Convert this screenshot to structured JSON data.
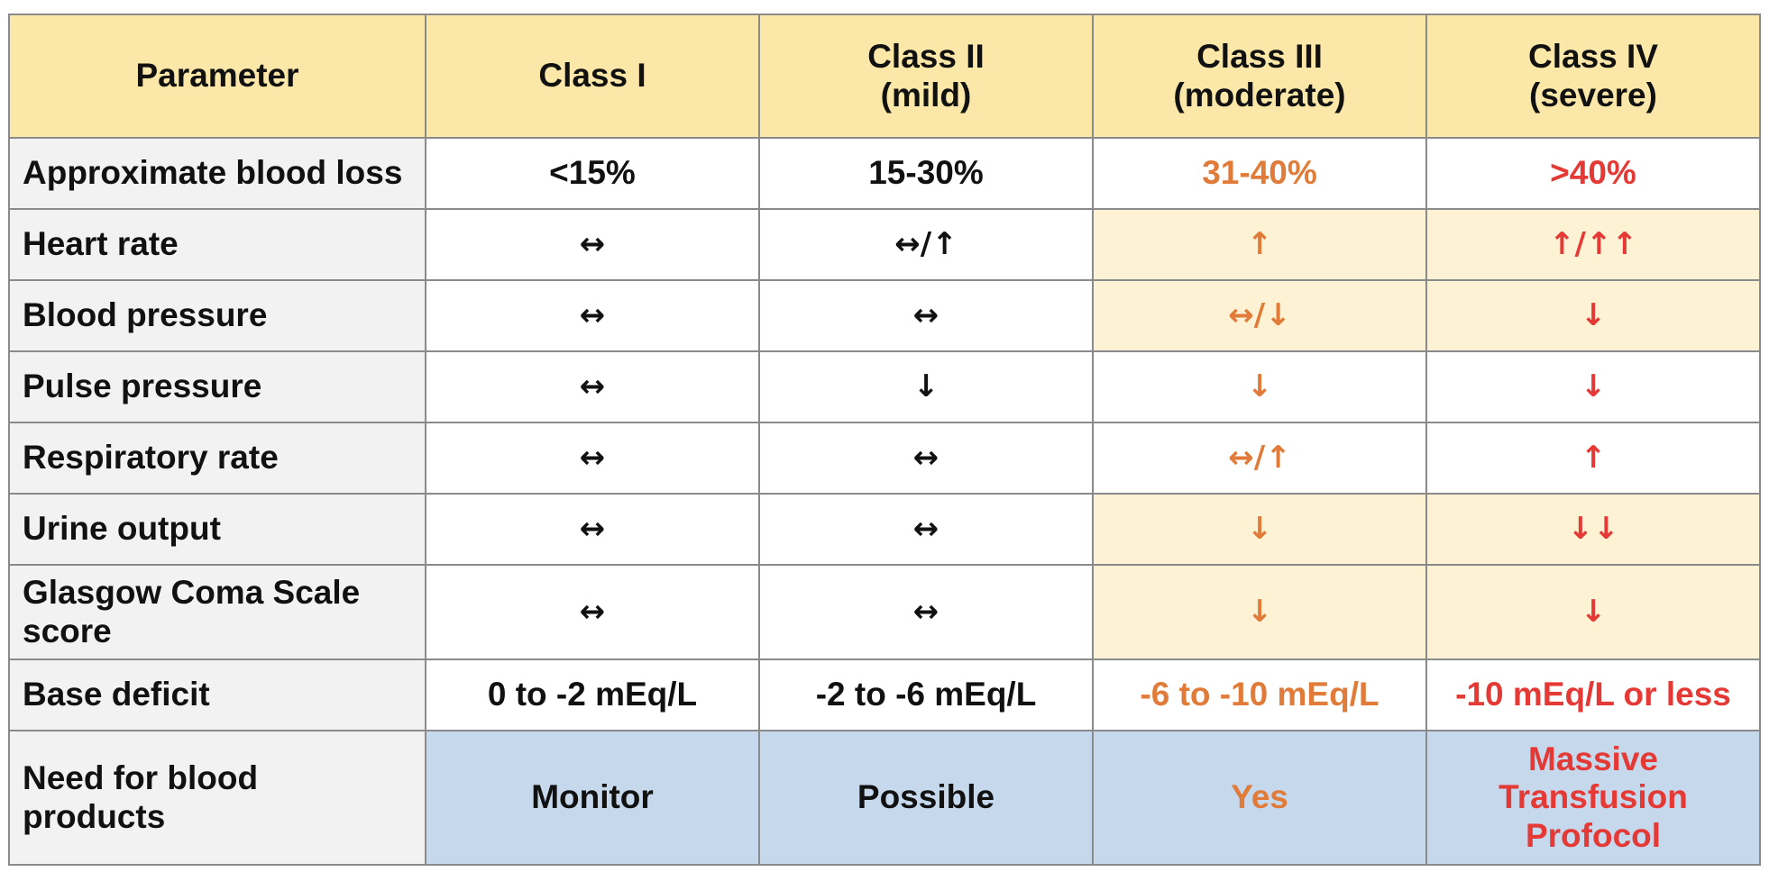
{
  "header": {
    "parameter": "Parameter",
    "class1": "Class I",
    "class2_line1": "Class II",
    "class2_line2": "(mild)",
    "class3_line1": "Class III",
    "class3_line2": "(moderate)",
    "class4_line1": "Class IV",
    "class4_line2": "(severe)"
  },
  "rows": [
    {
      "param": "Approximate blood loss",
      "c1": "<15%",
      "c2": "15-30%",
      "c3": "31-40%",
      "c4": ">40%"
    },
    {
      "param": "Heart rate",
      "c1": "↔",
      "c2": "↔/↑",
      "c3": "↑",
      "c4": "↑/↑↑"
    },
    {
      "param": "Blood pressure",
      "c1": "↔",
      "c2": "↔",
      "c3": "↔/↓",
      "c4": "↓"
    },
    {
      "param": "Pulse pressure",
      "c1": "↔",
      "c2": "↓",
      "c3": "↓",
      "c4": "↓"
    },
    {
      "param": "Respiratory rate",
      "c1": "↔",
      "c2": "↔",
      "c3": "↔/↑",
      "c4": "↑"
    },
    {
      "param": "Urine output",
      "c1": "↔",
      "c2": "↔",
      "c3": "↓",
      "c4": "↓↓"
    },
    {
      "param_line1": "Glasgow Coma Scale",
      "param_line2": "score",
      "c1": "↔",
      "c2": "↔",
      "c3": "↓",
      "c4": "↓"
    },
    {
      "param": "Base deficit",
      "c1": "0 to -2 mEq/L",
      "c2": "-2 to -6 mEq/L",
      "c3": "-6 to -10 mEq/L",
      "c4": "-10 mEq/L or less"
    },
    {
      "param_line1": "Need for blood",
      "param_line2": "products",
      "c1": "Monitor",
      "c2": "Possible",
      "c3": "Yes",
      "c4_line1": "Massive",
      "c4_line2": "Transfusion",
      "c4_line3": "Profocol"
    }
  ],
  "colors": {
    "header_bg": "#fbe7a7",
    "param_bg": "#f2f2f2",
    "cream_bg": "#fdf3d4",
    "blue_bg": "#c5d8ec",
    "orange_text": "#e07b39",
    "red_text": "#e53935",
    "border": "#8a8a8a"
  }
}
